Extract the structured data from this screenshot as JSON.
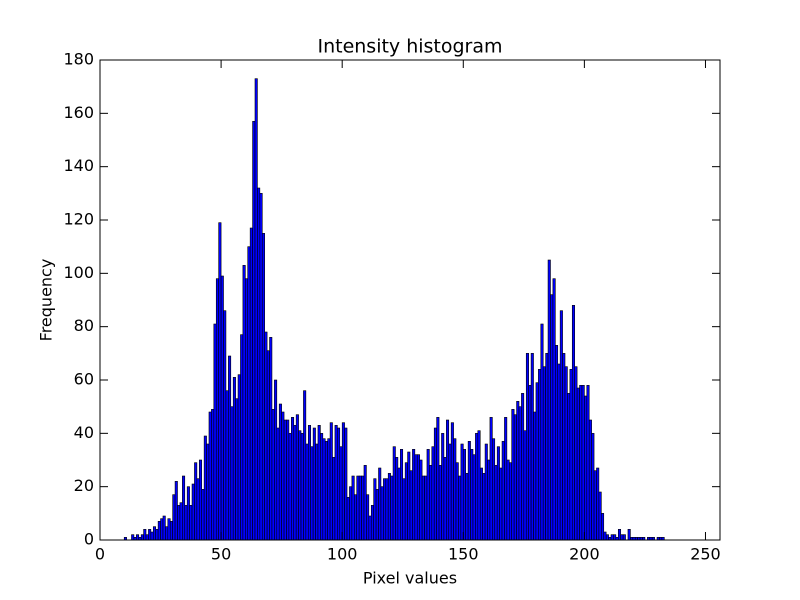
{
  "chart_data": {
    "type": "histogram",
    "title": "Intensity histogram",
    "x_label": "Pixel values",
    "y_label": "Frequency",
    "color": "#0000ff",
    "edgecolor": "#000000",
    "bins": [
      0,
      1,
      2,
      3,
      4,
      5,
      6,
      7,
      8,
      9,
      10,
      11,
      12,
      13,
      14,
      15,
      16,
      17,
      18,
      19,
      20,
      21,
      22,
      23,
      24,
      25,
      26,
      27,
      28,
      29,
      30,
      31,
      32,
      33,
      34,
      35,
      36,
      37,
      38,
      39,
      40,
      41,
      42,
      43,
      44,
      45,
      46,
      47,
      48,
      49,
      50,
      51,
      52,
      53,
      54,
      55,
      56,
      57,
      58,
      59,
      60,
      61,
      62,
      63,
      64,
      65,
      66,
      67,
      68,
      69,
      70,
      71,
      72,
      73,
      74,
      75,
      76,
      77,
      78,
      79,
      80,
      81,
      82,
      83,
      84,
      85,
      86,
      87,
      88,
      89,
      90,
      91,
      92,
      93,
      94,
      95,
      96,
      97,
      98,
      99,
      100,
      101,
      102,
      103,
      104,
      105,
      106,
      107,
      108,
      109,
      110,
      111,
      112,
      113,
      114,
      115,
      116,
      117,
      118,
      119,
      120,
      121,
      122,
      123,
      124,
      125,
      126,
      127,
      128,
      129,
      130,
      131,
      132,
      133,
      134,
      135,
      136,
      137,
      138,
      139,
      140,
      141,
      142,
      143,
      144,
      145,
      146,
      147,
      148,
      149,
      150,
      151,
      152,
      153,
      154,
      155,
      156,
      157,
      158,
      159,
      160,
      161,
      162,
      163,
      164,
      165,
      166,
      167,
      168,
      169,
      170,
      171,
      172,
      173,
      174,
      175,
      176,
      177,
      178,
      179,
      180,
      181,
      182,
      183,
      184,
      185,
      186,
      187,
      188,
      189,
      190,
      191,
      192,
      193,
      194,
      195,
      196,
      197,
      198,
      199,
      200,
      201,
      202,
      203,
      204,
      205,
      206,
      207,
      208,
      209,
      210,
      211,
      212,
      213,
      214,
      215,
      216,
      217,
      218,
      219,
      220,
      221,
      222,
      223,
      224,
      225,
      226,
      227,
      228,
      229,
      230,
      231,
      232,
      233,
      234,
      235,
      236,
      237,
      238,
      239,
      240,
      241,
      242,
      243,
      244,
      245,
      246,
      247,
      248,
      249,
      250,
      251,
      252,
      253,
      254,
      255,
      256
    ],
    "values": [
      0,
      0,
      0,
      0,
      0,
      0,
      0,
      0,
      0,
      0,
      1,
      0,
      0,
      2,
      1,
      2,
      1,
      2,
      4,
      2,
      4,
      3,
      5,
      4,
      7,
      8,
      9,
      5,
      8,
      7,
      17,
      22,
      13,
      14,
      24,
      13,
      20,
      13,
      21,
      29,
      23,
      30,
      19,
      39,
      36,
      48,
      49,
      81,
      98,
      119,
      99,
      86,
      56,
      69,
      50,
      61,
      53,
      62,
      77,
      103,
      98,
      110,
      117,
      157,
      173,
      132,
      130,
      115,
      78,
      71,
      76,
      49,
      60,
      42,
      51,
      48,
      45,
      45,
      40,
      46,
      43,
      47,
      41,
      40,
      56,
      36,
      43,
      35,
      42,
      36,
      43,
      40,
      38,
      37,
      38,
      44,
      31,
      43,
      42,
      35,
      44,
      42,
      16,
      20,
      24,
      17,
      24,
      24,
      24,
      28,
      17,
      9,
      13,
      23,
      19,
      27,
      20,
      23,
      23,
      25,
      24,
      35,
      31,
      27,
      34,
      23,
      29,
      33,
      26,
      34,
      32,
      32,
      30,
      24,
      24,
      34,
      28,
      35,
      42,
      46,
      28,
      40,
      31,
      45,
      36,
      44,
      38,
      29,
      24,
      36,
      34,
      25,
      37,
      34,
      32,
      40,
      41,
      27,
      25,
      36,
      30,
      46,
      38,
      28,
      35,
      27,
      37,
      46,
      30,
      29,
      49,
      47,
      52,
      50,
      55,
      41,
      70,
      58,
      70,
      48,
      59,
      64,
      81,
      65,
      70,
      105,
      92,
      98,
      73,
      66,
      86,
      70,
      65,
      55,
      64,
      88,
      65,
      57,
      58,
      58,
      54,
      58,
      45,
      40,
      26,
      27,
      18,
      10,
      3,
      2,
      1,
      2,
      2,
      1,
      4,
      2,
      2,
      0,
      4,
      1,
      1,
      1,
      1,
      1,
      1,
      0,
      1,
      1,
      1,
      0,
      1,
      1,
      1,
      0,
      0,
      0,
      0,
      0,
      0,
      0,
      0,
      0,
      0,
      0,
      0,
      0,
      0,
      0,
      0,
      0,
      0,
      0,
      0,
      0,
      0,
      0
    ],
    "xlim": [
      0,
      256
    ],
    "ylim": [
      0,
      180
    ],
    "xticks": [
      0,
      50,
      100,
      150,
      200,
      250
    ],
    "yticks": [
      0,
      20,
      40,
      60,
      80,
      100,
      120,
      140,
      160,
      180
    ]
  }
}
